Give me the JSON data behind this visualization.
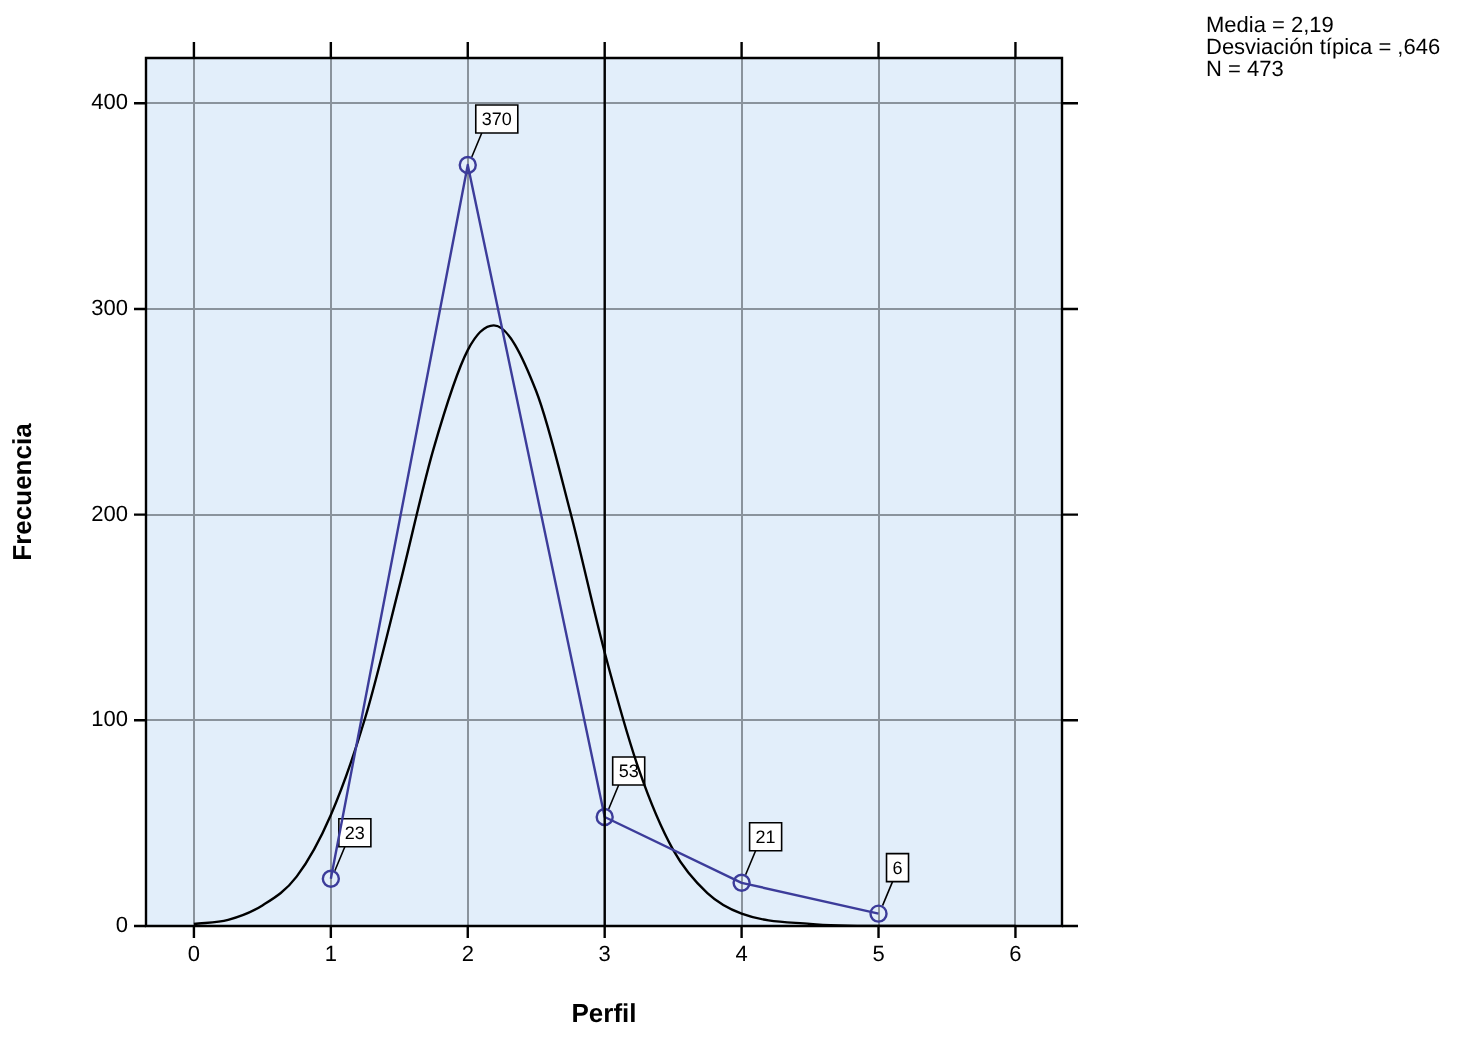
{
  "chart_data": {
    "type": "line",
    "xlabel": "Perfil",
    "ylabel": "Frecuencia",
    "xlim": [
      -0.35,
      6.34
    ],
    "xticks": [
      0,
      1,
      2,
      3,
      4,
      5,
      6
    ],
    "ylim": [
      0,
      422
    ],
    "yticks": [
      0,
      100,
      200,
      300,
      400
    ],
    "grid": true,
    "legend": false,
    "line_style": "solid",
    "ref_lines": [
      {
        "axis": "x",
        "value": 3,
        "color": "#000000"
      }
    ],
    "annotations": [
      "Media = 2,19",
      "Desviación típica = ,646",
      "N = 473"
    ],
    "series": [
      {
        "color": "#3c3c9a",
        "marker": "circle",
        "x": [
          1,
          2,
          3,
          4,
          5
        ],
        "values": [
          23,
          370,
          53,
          21,
          6
        ],
        "value_labels": [
          "23",
          "370",
          "53",
          "21",
          "6"
        ]
      },
      {
        "color": "#000000",
        "marker": "none",
        "x": [
          0,
          0.25,
          0.5,
          0.75,
          1,
          1.25,
          1.5,
          1.75,
          2,
          2.19,
          2.5,
          2.75,
          3,
          3.25,
          3.5,
          3.75,
          4,
          4.5,
          5,
          6
        ],
        "values": [
          1,
          3,
          10,
          24,
          54,
          101,
          165,
          232,
          280,
          292,
          260,
          201,
          133,
          76,
          37,
          16,
          6,
          1,
          0,
          0
        ]
      }
    ]
  }
}
